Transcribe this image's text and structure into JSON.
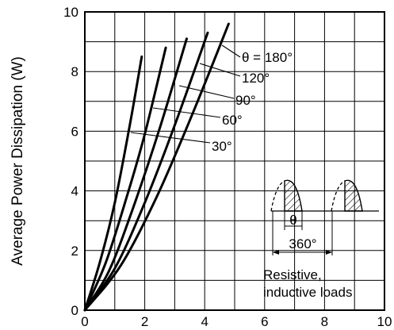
{
  "chart_data": {
    "type": "line",
    "title": "",
    "xlabel": "",
    "ylabel": "Average Power Dissipation  (W)",
    "xlim": [
      0,
      10
    ],
    "ylim": [
      0,
      10
    ],
    "xticks": [
      0,
      2,
      4,
      6,
      8,
      10
    ],
    "yticks": [
      0,
      2,
      4,
      6,
      8,
      10
    ],
    "xtick_labels": [
      "0",
      "2",
      "4",
      "6",
      "8",
      "10"
    ],
    "ytick_labels": [
      "0",
      "2",
      "4",
      "6",
      "8",
      "10"
    ],
    "grid": true,
    "series": [
      {
        "name": "30°",
        "x": [
          0,
          0.5,
          1.0,
          1.5,
          1.9
        ],
        "y": [
          0,
          1.6,
          3.6,
          6.2,
          8.5
        ]
      },
      {
        "name": "60°",
        "x": [
          0,
          0.7,
          1.4,
          2.0,
          2.7
        ],
        "y": [
          0,
          1.6,
          3.8,
          5.9,
          8.8
        ]
      },
      {
        "name": "90°",
        "x": [
          0,
          0.8,
          1.6,
          2.5,
          3.4
        ],
        "y": [
          0,
          1.3,
          3.4,
          6.1,
          9.1
        ]
      },
      {
        "name": "120°",
        "x": [
          0,
          1.0,
          2.0,
          3.0,
          4.1
        ],
        "y": [
          0,
          1.4,
          3.6,
          6.2,
          9.3
        ]
      },
      {
        "name": "θ = 180°",
        "x": [
          0,
          1.2,
          2.4,
          3.6,
          4.8
        ],
        "y": [
          0,
          1.5,
          3.8,
          6.6,
          9.6
        ]
      }
    ],
    "annotations": {
      "theta_label": "θ",
      "period_label": "360°",
      "load_line1": "Resistive,",
      "load_line2": "inductive loads"
    }
  }
}
